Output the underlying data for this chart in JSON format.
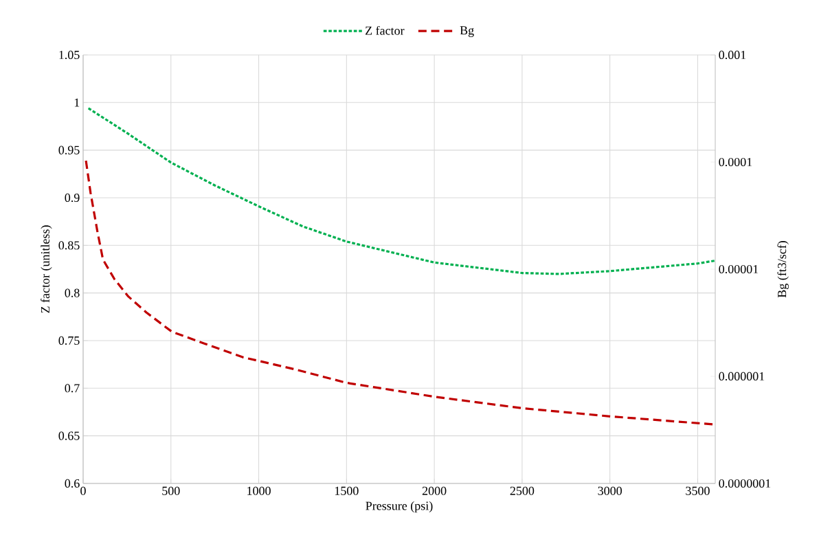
{
  "chart_data": {
    "type": "line",
    "xlabel": "Pressure (psi)",
    "ylabel": "Z factor (unitless)",
    "y2label": "Bg (ft3/scf)",
    "xlim": [
      0,
      3600
    ],
    "xticks": [
      0,
      500,
      1000,
      1500,
      2000,
      2500,
      3000,
      3500
    ],
    "ylim": [
      0.6,
      1.05
    ],
    "yticks": [
      0.6,
      0.65,
      0.7,
      0.75,
      0.8,
      0.85,
      0.9,
      0.95,
      1,
      1.05
    ],
    "y2lim": [
      1e-07,
      0.001
    ],
    "y2ticks": [
      {
        "value": 1e-07,
        "label": "0.0000001"
      },
      {
        "value": 1e-06,
        "label": "0.000001"
      },
      {
        "value": 1e-05,
        "label": "0.00001"
      },
      {
        "value": 0.0001,
        "label": "0.0001"
      },
      {
        "value": 0.001,
        "label": "0.001"
      }
    ],
    "log": "y2",
    "grid": true,
    "legend": "top",
    "series": [
      {
        "name": "Z factor",
        "color": "#00b050",
        "line_style": "dotted",
        "x": [
          30,
          250,
          500,
          750,
          1000,
          1250,
          1500,
          2000,
          2500,
          2710,
          3000,
          3500,
          3600
        ],
        "values": [
          0.994,
          0.968,
          0.937,
          0.913,
          0.891,
          0.87,
          0.854,
          0.832,
          0.821,
          0.82,
          0.823,
          0.831,
          0.834
        ]
      },
      {
        "name": "Bg",
        "color": "#c00000",
        "line_style": "dashed",
        "axis": "y2",
        "x": [
          16,
          42,
          81,
          113,
          179,
          257,
          360,
          505,
          687,
          908,
          1208,
          1500,
          2000,
          2500,
          3000,
          3600
        ],
        "values": [
          0.000103,
          5.2e-05,
          2.26e-05,
          1.23e-05,
          8.05e-06,
          5.57e-06,
          3.95e-06,
          2.61e-06,
          2.03e-06,
          1.51e-06,
          1.16e-06,
          8.7e-07,
          6.45e-07,
          5.04e-07,
          4.23e-07,
          3.55e-07
        ]
      }
    ]
  }
}
